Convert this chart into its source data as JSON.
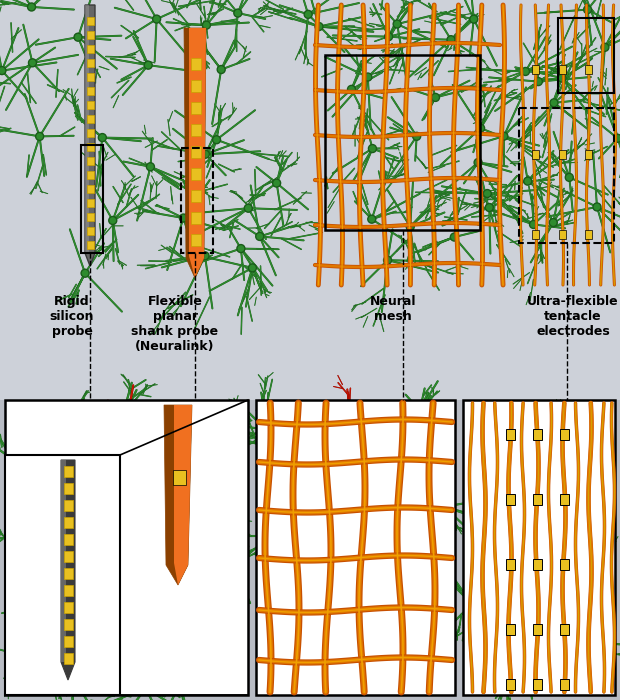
{
  "bg_top": "#cdd1d9",
  "bg_white": "#ffffff",
  "bg_outer": "#b8bcc4",
  "neuron_green_dark": "#1a5c1a",
  "neuron_green_mid": "#2e8b2e",
  "neuron_green_light": "#4ab04a",
  "neuron_red_dark": "#8b0000",
  "neuron_red_mid": "#cc1a00",
  "probe_gray_dark": "#3a3a3a",
  "probe_gray_mid": "#666666",
  "probe_gray_light": "#999999",
  "electrode_yellow": "#e8c020",
  "electrode_yellow_dark": "#c8a000",
  "mesh_orange_dark": "#c85000",
  "mesh_orange": "#e07800",
  "mesh_gold": "#f0a000",
  "shank_brown": "#8b4000",
  "shank_orange": "#d45800",
  "shank_bright": "#f07020",
  "tentacle_gold": "#d4aa00",
  "label_fontsize": 9,
  "labels": {
    "rigid": "Rigid\nsilicon\nprobe",
    "flexible": "Flexible\nplanar\nshank probe\n(Neuralink)",
    "neural": "Neural\nmesh",
    "tentacle": "Ultra-flexible\ntentacle\nelectrodes"
  }
}
